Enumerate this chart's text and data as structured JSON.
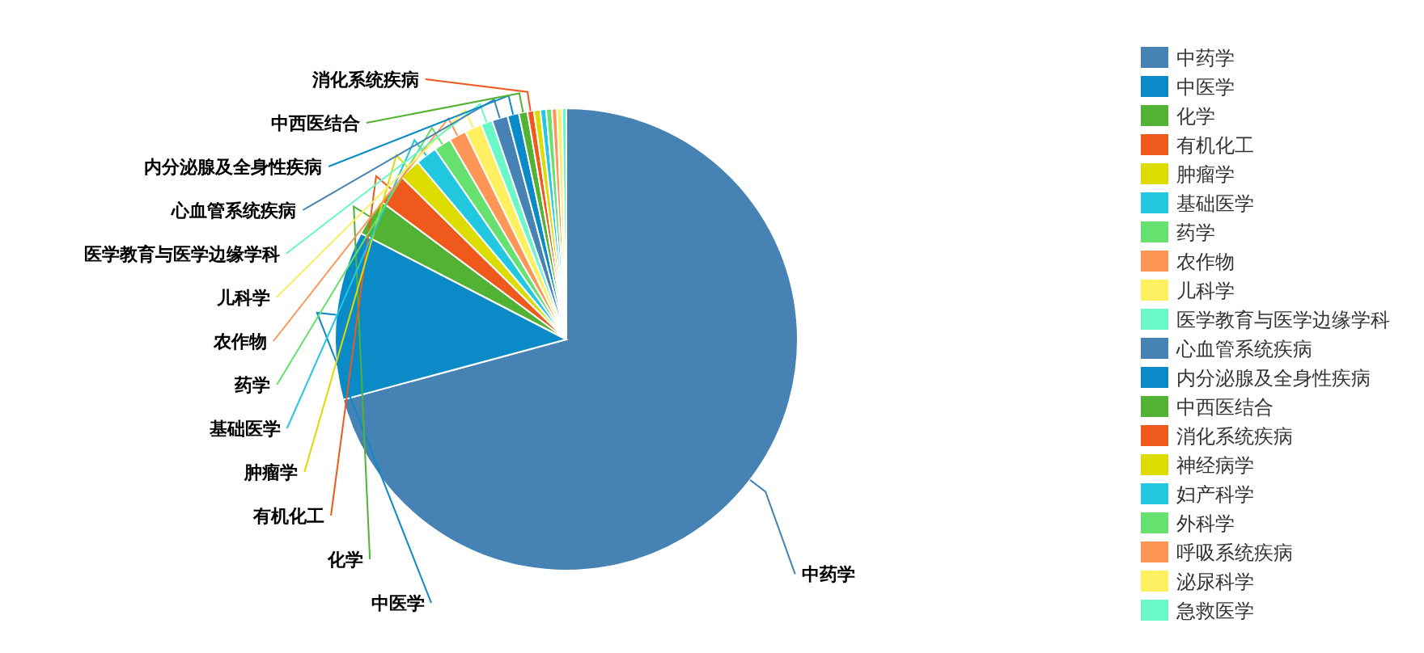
{
  "chart_data": {
    "type": "pie",
    "categories": [
      "中药学",
      "中医学",
      "化学",
      "有机化工",
      "肿瘤学",
      "基础医学",
      "药学",
      "农作物",
      "儿科学",
      "医学教育与医学边缘学科",
      "心血管系统疾病",
      "内分泌腺及全身性疾病",
      "中西医结合",
      "消化系统疾病",
      "神经病学",
      "妇产科学",
      "外科学",
      "呼吸系统疾病",
      "泌尿科学",
      "急救医学"
    ],
    "values": [
      70.8,
      11.8,
      2.6,
      2.2,
      1.5,
      1.5,
      1.2,
      1.2,
      1.2,
      0.8,
      1.1,
      0.8,
      0.6,
      0.45,
      0.45,
      0.4,
      0.4,
      0.35,
      0.35,
      0.3
    ],
    "colors": [
      "#4682b4",
      "#0a8ac7",
      "#52b234",
      "#ef5a1c",
      "#dcdc00",
      "#22c8e0",
      "#66e06e",
      "#ff9658",
      "#fff062",
      "#6af8c8",
      "#4682b4",
      "#0a8ac7",
      "#52b234",
      "#ef5a1c",
      "#dcdc00",
      "#22c8e0",
      "#66e06e",
      "#ff9658",
      "#fff062",
      "#6af8c8"
    ],
    "legend": "right"
  }
}
